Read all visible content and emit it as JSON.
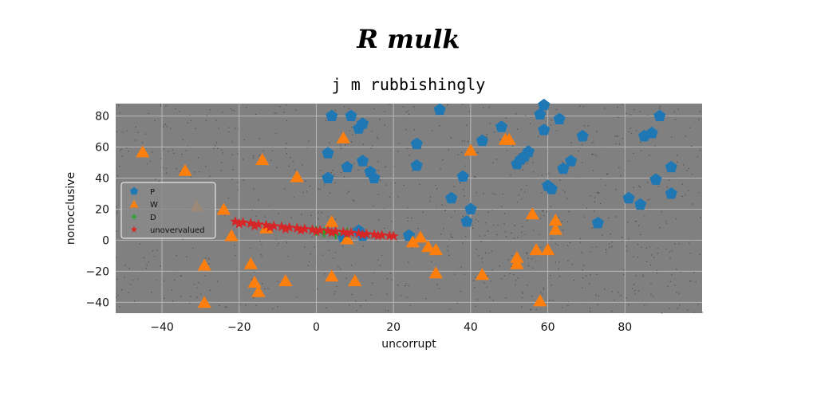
{
  "figure": {
    "suptitle": "R mulk",
    "colors": {
      "axes_bg": "#808080",
      "grid": "#b8b8b8",
      "P": "#1f77b4",
      "W": "#ff7f0e",
      "D": "#2ca02c",
      "unovervalued": "#d62728"
    }
  },
  "chart_data": {
    "type": "scatter",
    "title": "j m rubbishingly",
    "xlabel": "uncorrupt",
    "ylabel": "nonocclusive",
    "xlim": [
      -52,
      100
    ],
    "ylim": [
      -47,
      88
    ],
    "xticks": [
      -40,
      -20,
      0,
      20,
      40,
      60,
      80
    ],
    "yticks": [
      -40,
      -20,
      0,
      20,
      40,
      60,
      80
    ],
    "grid": true,
    "legend_position": "center-left",
    "series": [
      {
        "name": "P",
        "marker": "pentagon",
        "color": "#1f77b4",
        "points": [
          [
            3,
            56
          ],
          [
            4,
            80
          ],
          [
            9,
            80
          ],
          [
            11,
            72
          ],
          [
            12,
            75
          ],
          [
            8,
            47
          ],
          [
            3,
            40
          ],
          [
            12,
            51
          ],
          [
            14,
            44
          ],
          [
            15,
            40
          ],
          [
            26,
            62
          ],
          [
            26,
            48
          ],
          [
            32,
            84
          ],
          [
            35,
            27
          ],
          [
            38,
            41
          ],
          [
            39,
            12
          ],
          [
            40,
            20
          ],
          [
            43,
            64
          ],
          [
            48,
            73
          ],
          [
            52,
            49
          ],
          [
            53,
            52
          ],
          [
            54,
            54
          ],
          [
            55,
            57
          ],
          [
            58,
            81
          ],
          [
            59,
            87
          ],
          [
            59,
            71
          ],
          [
            60,
            35
          ],
          [
            61,
            33
          ],
          [
            63,
            78
          ],
          [
            64,
            46
          ],
          [
            66,
            51
          ],
          [
            69,
            67
          ],
          [
            73,
            11
          ],
          [
            81,
            27
          ],
          [
            84,
            23
          ],
          [
            85,
            67
          ],
          [
            87,
            69
          ],
          [
            88,
            39
          ],
          [
            89,
            80
          ],
          [
            92,
            47
          ],
          [
            92,
            30
          ],
          [
            7,
            2
          ],
          [
            11,
            6
          ],
          [
            24,
            3
          ],
          [
            12,
            3
          ]
        ]
      },
      {
        "name": "W",
        "marker": "triangle",
        "color": "#ff7f0e",
        "points": [
          [
            -45,
            57
          ],
          [
            -34,
            45
          ],
          [
            -31,
            22
          ],
          [
            -24,
            20
          ],
          [
            -22,
            3
          ],
          [
            -29,
            -16
          ],
          [
            -29,
            -40
          ],
          [
            -17,
            -15
          ],
          [
            -16,
            -27
          ],
          [
            -15,
            -33
          ],
          [
            -14,
            52
          ],
          [
            -13,
            8
          ],
          [
            -8,
            -26
          ],
          [
            -5,
            41
          ],
          [
            4,
            -23
          ],
          [
            4,
            12
          ],
          [
            7,
            66
          ],
          [
            8,
            1
          ],
          [
            10,
            -26
          ],
          [
            25,
            -1
          ],
          [
            27,
            2
          ],
          [
            29,
            -4
          ],
          [
            31,
            -6
          ],
          [
            31,
            -21
          ],
          [
            40,
            58
          ],
          [
            43,
            -22
          ],
          [
            49,
            65
          ],
          [
            50,
            65
          ],
          [
            52,
            -11
          ],
          [
            52,
            -15
          ],
          [
            56,
            17
          ],
          [
            57,
            -6
          ],
          [
            58,
            -39
          ],
          [
            60,
            -6
          ],
          [
            62,
            13
          ],
          [
            62,
            7
          ]
        ]
      },
      {
        "name": "D",
        "marker": "plus",
        "color": "#2ca02c",
        "points": [
          [
            0,
            6
          ],
          [
            2,
            5
          ],
          [
            5,
            4
          ],
          [
            8,
            5
          ]
        ]
      },
      {
        "name": "unovervalued",
        "marker": "star",
        "color": "#d62728",
        "points": [
          [
            -21,
            12
          ],
          [
            -19,
            11.4
          ],
          [
            -17,
            10.8
          ],
          [
            -15,
            10.2
          ],
          [
            -13,
            9.7
          ],
          [
            -11,
            9.2
          ],
          [
            -9,
            8.7
          ],
          [
            -7,
            8.2
          ],
          [
            -5,
            7.7
          ],
          [
            -3,
            7.2
          ],
          [
            -1,
            6.8
          ],
          [
            1,
            6.4
          ],
          [
            3,
            6
          ],
          [
            5,
            5.6
          ],
          [
            7,
            5.2
          ],
          [
            9,
            4.8
          ],
          [
            11,
            4.4
          ],
          [
            13,
            4
          ],
          [
            15,
            3.6
          ],
          [
            17,
            3.2
          ],
          [
            19,
            2.8
          ],
          [
            20,
            2.6
          ],
          [
            -20,
            10.5
          ],
          [
            -16,
            9.2
          ],
          [
            -12,
            8.2
          ],
          [
            -8,
            7.2
          ],
          [
            -4,
            6.4
          ],
          [
            0,
            5.6
          ],
          [
            4,
            4.9
          ],
          [
            8,
            4.2
          ],
          [
            12,
            3.5
          ],
          [
            16,
            2.9
          ]
        ]
      }
    ]
  }
}
